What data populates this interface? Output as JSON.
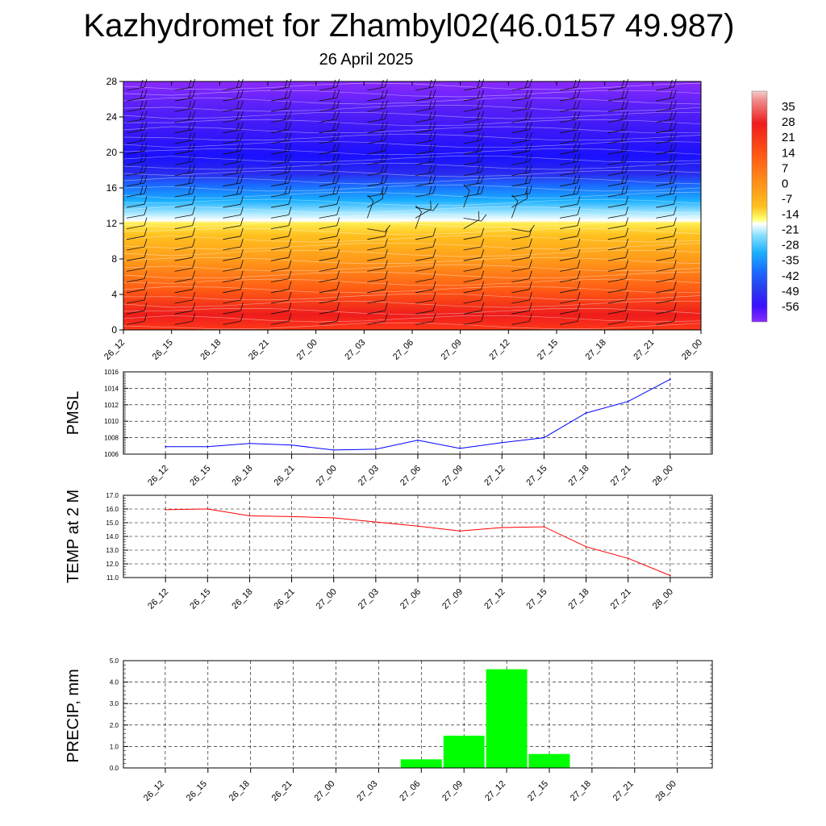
{
  "header": {
    "title": "Kazhydromet for Zhambyl02(46.0157 49.987)",
    "subtitle": "26 April 2025"
  },
  "time_labels": [
    "26_12",
    "26_15",
    "26_18",
    "26_21",
    "27_00",
    "27_03",
    "27_06",
    "27_09",
    "27_12",
    "27_15",
    "27_18",
    "27_21",
    "28_00"
  ],
  "colors": {
    "pmsl_line": "#0000ff",
    "temp_line": "#ff0000",
    "precip_bar": "#00ff00"
  },
  "chart_data": [
    {
      "type": "heatmap",
      "name": "vertical-cross-section",
      "title": "",
      "xlabel": "",
      "ylabel": "",
      "x": [
        "26_12",
        "26_15",
        "26_18",
        "26_21",
        "27_00",
        "27_03",
        "27_06",
        "27_09",
        "27_12",
        "27_15",
        "27_18",
        "27_21",
        "28_00"
      ],
      "ylim": [
        0,
        28
      ],
      "yticks": [
        0,
        4,
        8,
        12,
        16,
        20,
        24,
        28
      ],
      "colorbar_labels": [
        "35",
        "28",
        "21",
        "14",
        "7",
        "0",
        "-7",
        "-14",
        "-21",
        "-28",
        "-35",
        "-42",
        "-49",
        "-56"
      ],
      "colorbar_range": [
        -63,
        42
      ],
      "levels_temperature": [
        {
          "y": 0,
          "value": 20
        },
        {
          "y": 2,
          "value": 21
        },
        {
          "y": 5,
          "value": 17
        },
        {
          "y": 8,
          "value": 10
        },
        {
          "y": 11,
          "value": 2
        },
        {
          "y": 12.3,
          "value": -11
        },
        {
          "y": 13,
          "value": -16
        },
        {
          "y": 15,
          "value": -30
        },
        {
          "y": 17,
          "value": -44
        },
        {
          "y": 19,
          "value": -58
        },
        {
          "y": 21,
          "value": -57
        },
        {
          "y": 23,
          "value": -52
        },
        {
          "y": 25,
          "value": -48
        },
        {
          "y": 28,
          "value": -44
        }
      ],
      "wind_barbs": "present at every time step and level"
    },
    {
      "type": "line",
      "name": "pmsl",
      "ylabel": "PMSL",
      "x": [
        "26_12",
        "26_15",
        "26_18",
        "26_21",
        "27_00",
        "27_03",
        "27_06",
        "27_09",
        "27_12",
        "27_15",
        "27_18",
        "27_21",
        "28_00"
      ],
      "series": [
        {
          "values": [
            1006.9,
            1006.9,
            1007.3,
            1007.1,
            1006.5,
            1006.6,
            1007.7,
            1006.7,
            1007.4,
            1008.0,
            1011.0,
            1012.4,
            1015.1
          ]
        }
      ],
      "ylim": [
        1006,
        1016
      ],
      "yticks": [
        "1006",
        "1008",
        "1010",
        "1012",
        "1014",
        "1016"
      ],
      "grid": true
    },
    {
      "type": "line",
      "name": "temp-2m",
      "ylabel": "TEMP at 2 M",
      "x": [
        "26_12",
        "26_15",
        "26_18",
        "26_21",
        "27_00",
        "27_03",
        "27_06",
        "27_09",
        "27_12",
        "27_15",
        "27_18",
        "27_21",
        "28_00"
      ],
      "series": [
        {
          "values": [
            15.95,
            16.0,
            15.5,
            15.45,
            15.35,
            15.05,
            14.75,
            14.4,
            14.65,
            14.7,
            13.25,
            12.4,
            11.15
          ]
        }
      ],
      "ylim": [
        11,
        17
      ],
      "yticks": [
        "11.0",
        "12.0",
        "13.0",
        "14.0",
        "15.0",
        "16.0",
        "17.0"
      ],
      "grid": true
    },
    {
      "type": "bar",
      "name": "precip",
      "ylabel": "PRECIP, mm",
      "categories": [
        "26_12",
        "26_15",
        "26_18",
        "26_21",
        "27_00",
        "27_03",
        "27_06",
        "27_09",
        "27_12",
        "27_15",
        "27_18",
        "27_21",
        "28_00"
      ],
      "values": [
        0,
        0,
        0,
        0,
        0,
        0,
        0.4,
        1.5,
        4.6,
        0.65,
        0.02,
        0,
        0
      ],
      "ylim": [
        0,
        5
      ],
      "yticks": [
        "0.0",
        "1.0",
        "2.0",
        "3.0",
        "4.0",
        "5.0"
      ],
      "grid": true
    }
  ]
}
